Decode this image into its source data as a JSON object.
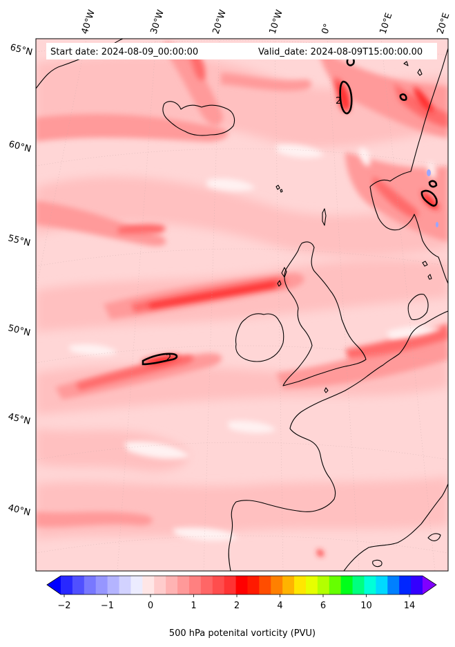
{
  "header": {
    "start_text": "Start date: 2024-08-09_00:00:00",
    "valid_text": "Valid_date: 2024-08-09T15:00:00.00"
  },
  "graticule": {
    "lat_labels": [
      "65°N",
      "60°N",
      "55°N",
      "50°N",
      "45°N",
      "40°N"
    ],
    "lon_labels": [
      "40°W",
      "30°W",
      "20°W",
      "10°W",
      "0°",
      "10°E",
      "20°E"
    ]
  },
  "field": {
    "contour_label": "2",
    "colors": {
      "background": "#ffd6d6",
      "light": "#ffc2c2",
      "mid": "#ff9e9e",
      "strong": "#ff6b6b",
      "max": "#ff2a2a",
      "white": "#fff0f0",
      "blue": "#9aa6ff",
      "coast": "#000000"
    }
  },
  "colorbar": {
    "ticks": [
      "−2",
      "−1",
      "0",
      "1",
      "2",
      "4",
      "6",
      "10",
      "14"
    ],
    "label": "500 hPa potenital vorticity (PVU)",
    "colors": [
      "#0000ff",
      "#2828ff",
      "#5050ff",
      "#7878ff",
      "#9696ff",
      "#b4b4ff",
      "#d2d2ff",
      "#ececff",
      "#ffe6e6",
      "#ffcccc",
      "#ffb3b3",
      "#ff9999",
      "#ff8080",
      "#ff6666",
      "#ff4d4d",
      "#ff3333",
      "#ff0000",
      "#ff1a00",
      "#ff4d00",
      "#ff8000",
      "#ffb300",
      "#ffe600",
      "#e6ff00",
      "#b3ff00",
      "#66ff00",
      "#00ff1a",
      "#00ff80",
      "#00ffd9",
      "#00d9ff",
      "#0080ff",
      "#0026ff",
      "#3300ff",
      "#8000ff"
    ]
  }
}
